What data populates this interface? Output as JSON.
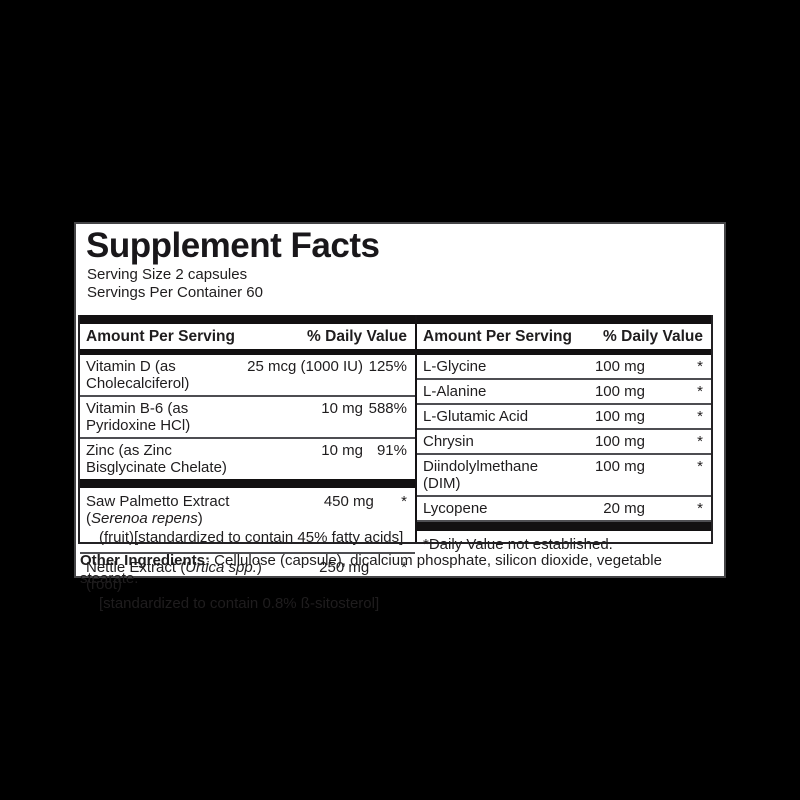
{
  "panel": {
    "title": "Supplement Facts",
    "serving_size": "Serving Size 2 capsules",
    "servings_per_container": "Servings Per Container 60"
  },
  "header": {
    "amount": "Amount Per Serving",
    "daily_value": "% Daily Value"
  },
  "left_column": {
    "rows": [
      {
        "name": "Vitamin D (as Cholecalciferol)",
        "amount": "25 mcg (1000 IU)",
        "dv": "125%"
      },
      {
        "name": "Vitamin B-6 (as Pyridoxine HCl)",
        "amount": "10 mg",
        "dv": "588%"
      },
      {
        "name": "Zinc (as Zinc Bisglycinate Chelate)",
        "amount": "10 mg",
        "dv": "91%"
      }
    ],
    "botanical_rows": [
      {
        "pre": "Saw Palmetto Extract (",
        "italic": "Serenoa repens",
        "post": ")",
        "amount": "450 mg",
        "dv": "*",
        "detail": "(fruit)[standardized to contain 45% fatty acids]"
      },
      {
        "pre": "Nettle Extract (",
        "italic": "Urtica spp.",
        "post": ")(root)",
        "amount": "250 mg",
        "dv": "*",
        "detail": "[standardized to contain 0.8% ß-sitosterol]"
      }
    ]
  },
  "right_column": {
    "rows": [
      {
        "name": "L-Glycine",
        "amount": "100 mg",
        "dv": "*"
      },
      {
        "name": "L-Alanine",
        "amount": "100 mg",
        "dv": "*"
      },
      {
        "name": "L-Glutamic Acid",
        "amount": "100 mg",
        "dv": "*"
      },
      {
        "name": "Chrysin",
        "amount": "100 mg",
        "dv": "*"
      },
      {
        "name": "Diindolylmethane (DIM)",
        "amount": "100 mg",
        "dv": "*"
      },
      {
        "name": "Lycopene",
        "amount": "20 mg",
        "dv": "*"
      }
    ],
    "footnote": "*Daily Value not established."
  },
  "other_ingredients": {
    "label": "Other Ingredients:",
    "text": " Cellulose (capsule), dicalcium phosphate, silicon dioxide, vegetable stearate."
  },
  "colors": {
    "background": "#000000",
    "panel": "#ffffff",
    "text": "#1f1d1e",
    "bar": "#121011"
  }
}
